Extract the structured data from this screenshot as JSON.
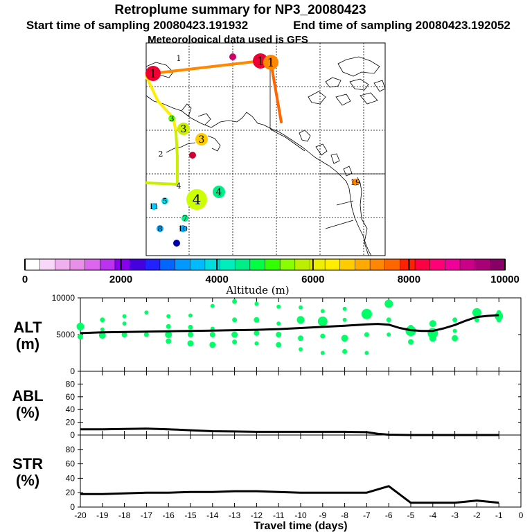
{
  "header": {
    "title": "Retroplume summary for NP3_20080423",
    "start": "Start time of sampling 20080423.191932",
    "end": "End time of sampling 20080423.192052",
    "met": "Meteorological data used is GFS"
  },
  "colors": {
    "plume_green": "#00ff66",
    "line": "#000000",
    "map_frame": "#000000"
  },
  "map": {
    "path_segments": [
      {
        "from": "1",
        "to": "1",
        "color": "#ff8800"
      },
      {
        "from": "1",
        "to": "interior",
        "color": "#ff6600"
      },
      {
        "from": "1",
        "to": "2",
        "color": "#ffee00"
      },
      {
        "from": "2",
        "to": "4",
        "color": "#ccee00"
      }
    ],
    "markers": [
      {
        "label": "1",
        "color": "#ffffff",
        "size": "small"
      },
      {
        "label": "",
        "color": "#cc0066",
        "size": "small"
      },
      {
        "label": "1",
        "color": "#ee0033",
        "size": "large"
      },
      {
        "label": "1",
        "color": "#ff8800",
        "size": "large"
      },
      {
        "label": "1",
        "color": "#ee0033",
        "size": "large"
      },
      {
        "label": "3",
        "color": "#66ff00",
        "size": "small"
      },
      {
        "label": "3",
        "color": "#ccee00",
        "size": "medium"
      },
      {
        "label": "3",
        "color": "#ffcc00",
        "size": "medium"
      },
      {
        "label": "2",
        "color": "#ffffff",
        "size": "small"
      },
      {
        "label": "",
        "color": "#cc0033",
        "size": "small"
      },
      {
        "label": "4",
        "color": "#ffffff",
        "size": "small"
      },
      {
        "label": "4",
        "color": "#00ee88",
        "size": "medium"
      },
      {
        "label": "4",
        "color": "#ccff00",
        "size": "xlarge"
      },
      {
        "label": "5",
        "color": "#00ddee",
        "size": "small"
      },
      {
        "label": "11",
        "color": "#00ccff",
        "size": "small"
      },
      {
        "label": "7",
        "color": "#00ee88",
        "size": "small"
      },
      {
        "label": "8",
        "color": "#00aaff",
        "size": "small"
      },
      {
        "label": "10",
        "color": "#00aaff",
        "size": "small"
      },
      {
        "label": "",
        "color": "#0000aa",
        "size": "small"
      },
      {
        "label": "19",
        "color": "#ff8800",
        "size": "small"
      }
    ]
  },
  "colorbar": {
    "label": "Altitude (m)",
    "min": 0,
    "max": 10000,
    "ticks": [
      "0",
      "2000",
      "4000",
      "6000",
      "8000",
      "10000"
    ],
    "colors": [
      "#ffffff",
      "#f8d8f8",
      "#f0b0f0",
      "#e890e8",
      "#dd66ee",
      "#bb33ee",
      "#8800ee",
      "#4400dd",
      "#2222ff",
      "#0066ff",
      "#0099ff",
      "#00bbff",
      "#00dddd",
      "#00eebb",
      "#00ee88",
      "#00ff44",
      "#33ff00",
      "#88ff00",
      "#bbee00",
      "#eeee00",
      "#ffee00",
      "#ffcc00",
      "#ffaa00",
      "#ff8800",
      "#ff6600",
      "#ff2200",
      "#ff0044",
      "#ff0077",
      "#ee0099",
      "#cc0088",
      "#aa0077",
      "#880066"
    ]
  },
  "chart_data": [
    {
      "type": "scatter",
      "panel": "ALT",
      "ylabel_top": "ALT",
      "ylabel_unit": "(m)",
      "xlabel": "Travel time (days)",
      "xlim": [
        -20,
        0
      ],
      "ylim": [
        0,
        10000
      ],
      "yticks": [
        "0",
        "5000",
        "10000"
      ],
      "median_line": {
        "x": [
          -20,
          -19,
          -18,
          -17,
          -16,
          -15,
          -14,
          -13,
          -12,
          -11,
          -10,
          -9,
          -8,
          -7,
          -6.5,
          -6,
          -5.5,
          -5,
          -4.5,
          -4,
          -3.5,
          -3,
          -2.5,
          -2,
          -1.5,
          -1
        ],
        "y": [
          5200,
          5300,
          5350,
          5400,
          5450,
          5500,
          5550,
          5600,
          5650,
          5750,
          5900,
          6050,
          6200,
          6400,
          6450,
          6350,
          5900,
          5600,
          5500,
          5500,
          5850,
          6300,
          6900,
          7400,
          7550,
          7650
        ]
      },
      "plume_points": {
        "x": [
          -20,
          -20,
          -19,
          -19,
          -19,
          -18,
          -18,
          -18,
          -17,
          -17,
          -16,
          -16,
          -16,
          -16,
          -15,
          -15,
          -15,
          -15,
          -14,
          -14,
          -14,
          -14,
          -13,
          -13,
          -13,
          -13,
          -12,
          -12,
          -12,
          -12,
          -11,
          -11,
          -11,
          -11,
          -10,
          -10,
          -10,
          -10,
          -9,
          -9,
          -9,
          -9,
          -8,
          -8,
          -8,
          -8,
          -7,
          -7,
          -7,
          -7,
          -6,
          -6,
          -6,
          -5,
          -5,
          -5,
          -4,
          -4,
          -4,
          -3,
          -3,
          -3,
          -2,
          -2,
          -1,
          -1,
          -1
        ],
        "y": [
          6100,
          4700,
          7000,
          4900,
          5700,
          6500,
          5000,
          7500,
          5000,
          8000,
          6100,
          5000,
          4100,
          7500,
          7600,
          6000,
          5000,
          3800,
          8900,
          5000,
          5800,
          3600,
          9500,
          7000,
          5000,
          4000,
          9200,
          7000,
          5200,
          3800,
          8800,
          6500,
          5000,
          3600,
          8700,
          7000,
          4500,
          3000,
          8200,
          6800,
          4800,
          2500,
          8500,
          7000,
          4500,
          2700,
          8200,
          7800,
          5000,
          2500,
          9200,
          7000,
          5000,
          6000,
          5500,
          4000,
          6500,
          5200,
          4500,
          7000,
          5500,
          4500,
          8000,
          7000,
          8000,
          7000,
          7500
        ],
        "size": [
          8,
          5,
          4,
          7,
          3,
          3,
          5,
          3,
          4,
          3,
          4,
          7,
          5,
          3,
          3,
          4,
          5,
          6,
          3,
          5,
          3,
          6,
          4,
          4,
          6,
          4,
          3,
          5,
          5,
          3,
          3,
          3,
          5,
          5,
          3,
          8,
          5,
          3,
          3,
          11,
          4,
          3,
          3,
          3,
          7,
          4,
          3,
          12,
          4,
          3,
          9,
          4,
          3,
          4,
          12,
          5,
          7,
          12,
          7,
          4,
          3,
          6,
          10,
          4,
          4,
          4,
          9
        ]
      }
    },
    {
      "type": "line",
      "panel": "ABL",
      "ylabel_top": "ABL",
      "ylabel_unit": "(%)",
      "xlim": [
        -20,
        0
      ],
      "ylim": [
        0,
        100
      ],
      "yticks": [
        "0",
        "20",
        "40",
        "60",
        "80"
      ],
      "x": [
        -20,
        -19,
        -18,
        -17,
        -16,
        -15,
        -14,
        -13,
        -12,
        -11,
        -10,
        -9,
        -8,
        -7,
        -6.5,
        -6,
        -5,
        -4,
        -3,
        -2,
        -1
      ],
      "y": [
        9,
        9,
        9.5,
        10,
        9,
        7.5,
        6,
        5.5,
        5,
        5,
        5,
        5,
        5,
        4.5,
        2,
        0.5,
        0,
        0,
        0,
        0,
        0
      ]
    },
    {
      "type": "line",
      "panel": "STR",
      "ylabel_top": "STR",
      "ylabel_unit": "(%)",
      "xlim": [
        -20,
        0
      ],
      "ylim": [
        0,
        100
      ],
      "yticks": [
        "0",
        "20",
        "40",
        "60",
        "80"
      ],
      "xticks": [
        "-20",
        "-19",
        "-18",
        "-17",
        "-16",
        "-15",
        "-14",
        "-13",
        "-12",
        "-11",
        "-10",
        "-9",
        "-8",
        "-7",
        "-6",
        "-5",
        "-4",
        "-3",
        "-2",
        "-1",
        "0"
      ],
      "x": [
        -20,
        -19,
        -18,
        -17,
        -16,
        -15,
        -14,
        -13,
        -12,
        -11,
        -10,
        -9,
        -8,
        -7,
        -6,
        -5,
        -4,
        -3,
        -2,
        -1
      ],
      "y": [
        18,
        18,
        19,
        20,
        20,
        21,
        21,
        22,
        22,
        21,
        20,
        20,
        20,
        20,
        29,
        6,
        6,
        6,
        9,
        6
      ]
    }
  ]
}
